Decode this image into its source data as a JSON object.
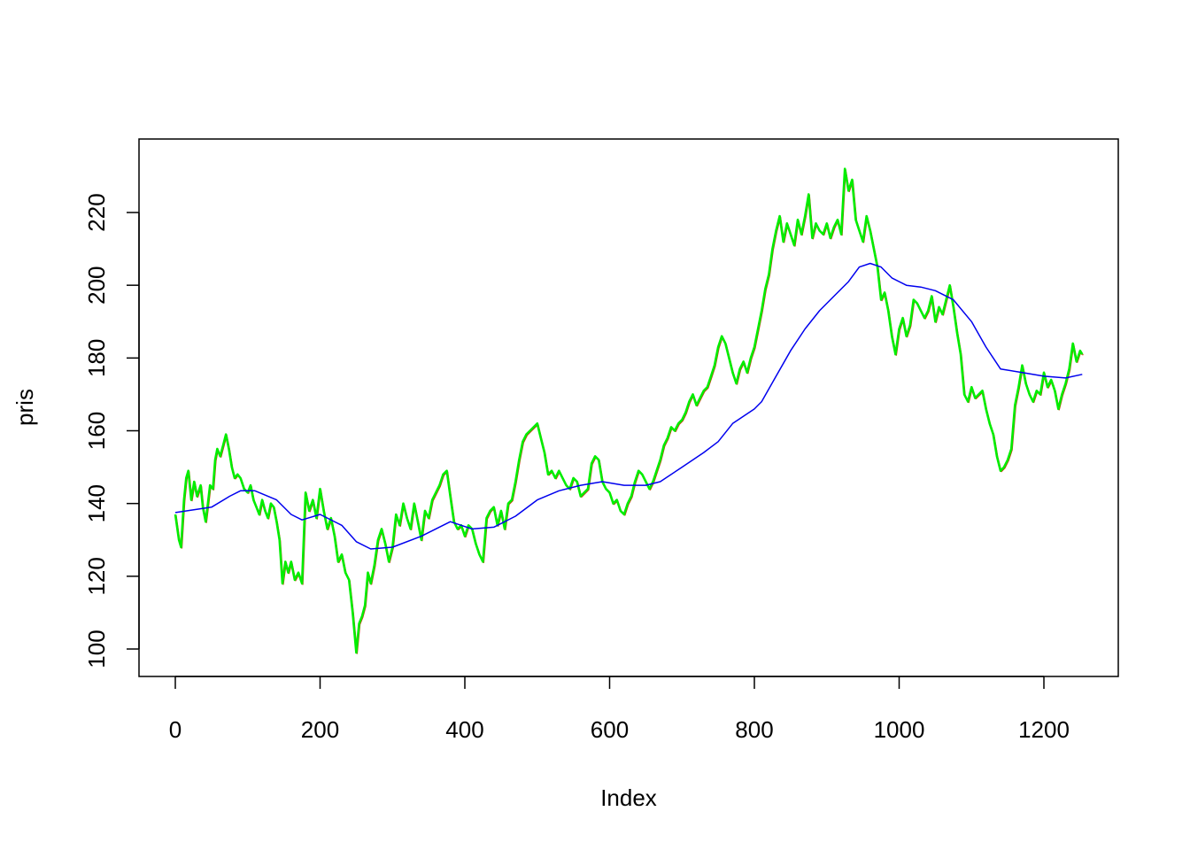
{
  "chart_data": {
    "type": "line",
    "title": "",
    "xlabel": "Index",
    "ylabel": "pris",
    "xlim": [
      -25,
      1280
    ],
    "ylim": [
      93,
      240
    ],
    "x_ticks": [
      0,
      200,
      400,
      600,
      800,
      1000,
      1200
    ],
    "y_ticks": [
      100,
      120,
      140,
      160,
      180,
      200,
      220
    ],
    "x_tick_labels": [
      "0",
      "200",
      "400",
      "600",
      "800",
      "1000",
      "1200"
    ],
    "y_tick_labels": [
      "100",
      "120",
      "140",
      "160",
      "180",
      "200",
      "220"
    ],
    "grid": false,
    "legend": "none",
    "colors": {
      "price_line": "#00ee00",
      "price_shadow": "#cc3300",
      "moving_average": "#0000ee",
      "frame": "#000000"
    },
    "series": [
      {
        "key": "pris",
        "color": "#00ee00",
        "points": [
          [
            0,
            137
          ],
          [
            5,
            130
          ],
          [
            8,
            128
          ],
          [
            12,
            141
          ],
          [
            15,
            147
          ],
          [
            18,
            149
          ],
          [
            22,
            141
          ],
          [
            26,
            146
          ],
          [
            30,
            142
          ],
          [
            35,
            145
          ],
          [
            38,
            139
          ],
          [
            42,
            135
          ],
          [
            45,
            140
          ],
          [
            48,
            145
          ],
          [
            52,
            144
          ],
          [
            55,
            152
          ],
          [
            58,
            155
          ],
          [
            62,
            153
          ],
          [
            66,
            156
          ],
          [
            70,
            159
          ],
          [
            74,
            155
          ],
          [
            78,
            150
          ],
          [
            82,
            147
          ],
          [
            86,
            148
          ],
          [
            90,
            147
          ],
          [
            95,
            144
          ],
          [
            100,
            143
          ],
          [
            104,
            145
          ],
          [
            108,
            141
          ],
          [
            112,
            139
          ],
          [
            116,
            137
          ],
          [
            120,
            141
          ],
          [
            124,
            138
          ],
          [
            128,
            136
          ],
          [
            132,
            140
          ],
          [
            136,
            139
          ],
          [
            140,
            135
          ],
          [
            144,
            130
          ],
          [
            148,
            118
          ],
          [
            152,
            124
          ],
          [
            156,
            121
          ],
          [
            160,
            124
          ],
          [
            165,
            119
          ],
          [
            170,
            121
          ],
          [
            175,
            118
          ],
          [
            180,
            143
          ],
          [
            185,
            138
          ],
          [
            190,
            141
          ],
          [
            195,
            136
          ],
          [
            200,
            144
          ],
          [
            205,
            138
          ],
          [
            210,
            133
          ],
          [
            215,
            136
          ],
          [
            220,
            131
          ],
          [
            225,
            124
          ],
          [
            230,
            126
          ],
          [
            235,
            121
          ],
          [
            240,
            119
          ],
          [
            245,
            110
          ],
          [
            250,
            99
          ],
          [
            254,
            107
          ],
          [
            258,
            109
          ],
          [
            262,
            112
          ],
          [
            266,
            121
          ],
          [
            270,
            118
          ],
          [
            275,
            123
          ],
          [
            280,
            130
          ],
          [
            285,
            133
          ],
          [
            290,
            129
          ],
          [
            295,
            124
          ],
          [
            300,
            128
          ],
          [
            305,
            137
          ],
          [
            310,
            134
          ],
          [
            315,
            140
          ],
          [
            320,
            136
          ],
          [
            325,
            133
          ],
          [
            330,
            140
          ],
          [
            335,
            135
          ],
          [
            340,
            130
          ],
          [
            345,
            138
          ],
          [
            350,
            136
          ],
          [
            355,
            141
          ],
          [
            360,
            143
          ],
          [
            365,
            145
          ],
          [
            370,
            148
          ],
          [
            375,
            149
          ],
          [
            380,
            142
          ],
          [
            385,
            135
          ],
          [
            390,
            133
          ],
          [
            395,
            134
          ],
          [
            400,
            131
          ],
          [
            405,
            134
          ],
          [
            410,
            133
          ],
          [
            415,
            129
          ],
          [
            420,
            126
          ],
          [
            425,
            124
          ],
          [
            430,
            136
          ],
          [
            435,
            138
          ],
          [
            440,
            139
          ],
          [
            445,
            134
          ],
          [
            450,
            138
          ],
          [
            455,
            133
          ],
          [
            460,
            140
          ],
          [
            465,
            141
          ],
          [
            470,
            146
          ],
          [
            475,
            152
          ],
          [
            480,
            157
          ],
          [
            485,
            159
          ],
          [
            490,
            160
          ],
          [
            495,
            161
          ],
          [
            500,
            162
          ],
          [
            505,
            158
          ],
          [
            510,
            154
          ],
          [
            515,
            148
          ],
          [
            520,
            149
          ],
          [
            525,
            147
          ],
          [
            530,
            149
          ],
          [
            535,
            147
          ],
          [
            540,
            145
          ],
          [
            545,
            144
          ],
          [
            550,
            147
          ],
          [
            555,
            146
          ],
          [
            560,
            142
          ],
          [
            565,
            143
          ],
          [
            570,
            144
          ],
          [
            575,
            151
          ],
          [
            580,
            153
          ],
          [
            585,
            152
          ],
          [
            590,
            146
          ],
          [
            595,
            144
          ],
          [
            600,
            143
          ],
          [
            605,
            140
          ],
          [
            610,
            141
          ],
          [
            615,
            138
          ],
          [
            620,
            137
          ],
          [
            625,
            140
          ],
          [
            630,
            142
          ],
          [
            635,
            146
          ],
          [
            640,
            149
          ],
          [
            645,
            148
          ],
          [
            650,
            146
          ],
          [
            655,
            144
          ],
          [
            660,
            146
          ],
          [
            665,
            149
          ],
          [
            670,
            152
          ],
          [
            675,
            156
          ],
          [
            680,
            158
          ],
          [
            685,
            161
          ],
          [
            690,
            160
          ],
          [
            695,
            162
          ],
          [
            700,
            163
          ],
          [
            705,
            165
          ],
          [
            710,
            168
          ],
          [
            715,
            170
          ],
          [
            720,
            167
          ],
          [
            725,
            169
          ],
          [
            730,
            171
          ],
          [
            735,
            172
          ],
          [
            740,
            175
          ],
          [
            745,
            178
          ],
          [
            750,
            183
          ],
          [
            755,
            186
          ],
          [
            760,
            184
          ],
          [
            765,
            180
          ],
          [
            770,
            176
          ],
          [
            775,
            173
          ],
          [
            780,
            177
          ],
          [
            785,
            179
          ],
          [
            790,
            176
          ],
          [
            795,
            180
          ],
          [
            800,
            183
          ],
          [
            805,
            188
          ],
          [
            810,
            193
          ],
          [
            815,
            199
          ],
          [
            820,
            203
          ],
          [
            825,
            210
          ],
          [
            830,
            215
          ],
          [
            835,
            219
          ],
          [
            840,
            212
          ],
          [
            845,
            217
          ],
          [
            850,
            214
          ],
          [
            855,
            211
          ],
          [
            860,
            218
          ],
          [
            865,
            214
          ],
          [
            870,
            219
          ],
          [
            875,
            225
          ],
          [
            880,
            213
          ],
          [
            885,
            217
          ],
          [
            890,
            215
          ],
          [
            895,
            214
          ],
          [
            900,
            217
          ],
          [
            905,
            213
          ],
          [
            910,
            216
          ],
          [
            915,
            218
          ],
          [
            920,
            214
          ],
          [
            925,
            232
          ],
          [
            930,
            226
          ],
          [
            935,
            229
          ],
          [
            940,
            218
          ],
          [
            945,
            215
          ],
          [
            950,
            212
          ],
          [
            955,
            219
          ],
          [
            960,
            215
          ],
          [
            965,
            210
          ],
          [
            970,
            205
          ],
          [
            975,
            196
          ],
          [
            980,
            198
          ],
          [
            985,
            193
          ],
          [
            990,
            186
          ],
          [
            995,
            181
          ],
          [
            1000,
            188
          ],
          [
            1005,
            191
          ],
          [
            1010,
            186
          ],
          [
            1015,
            189
          ],
          [
            1020,
            196
          ],
          [
            1025,
            195
          ],
          [
            1030,
            193
          ],
          [
            1035,
            191
          ],
          [
            1040,
            193
          ],
          [
            1045,
            197
          ],
          [
            1050,
            190
          ],
          [
            1055,
            194
          ],
          [
            1060,
            192
          ],
          [
            1065,
            196
          ],
          [
            1070,
            200
          ],
          [
            1075,
            194
          ],
          [
            1080,
            187
          ],
          [
            1085,
            181
          ],
          [
            1090,
            170
          ],
          [
            1095,
            168
          ],
          [
            1100,
            172
          ],
          [
            1105,
            169
          ],
          [
            1110,
            170
          ],
          [
            1115,
            171
          ],
          [
            1120,
            166
          ],
          [
            1125,
            162
          ],
          [
            1130,
            159
          ],
          [
            1135,
            153
          ],
          [
            1140,
            149
          ],
          [
            1145,
            150
          ],
          [
            1150,
            152
          ],
          [
            1155,
            155
          ],
          [
            1160,
            167
          ],
          [
            1165,
            172
          ],
          [
            1170,
            178
          ],
          [
            1175,
            173
          ],
          [
            1180,
            170
          ],
          [
            1185,
            168
          ],
          [
            1190,
            171
          ],
          [
            1195,
            170
          ],
          [
            1200,
            176
          ],
          [
            1205,
            172
          ],
          [
            1210,
            174
          ],
          [
            1215,
            171
          ],
          [
            1220,
            166
          ],
          [
            1225,
            170
          ],
          [
            1230,
            173
          ],
          [
            1235,
            177
          ],
          [
            1240,
            184
          ],
          [
            1245,
            179
          ],
          [
            1250,
            182
          ],
          [
            1253,
            181
          ]
        ]
      },
      {
        "key": "moving-average",
        "color": "#0000ee",
        "points": [
          [
            0,
            137.5
          ],
          [
            50,
            139
          ],
          [
            75,
            142
          ],
          [
            90,
            143.5
          ],
          [
            110,
            143.5
          ],
          [
            140,
            141
          ],
          [
            160,
            137
          ],
          [
            175,
            135.5
          ],
          [
            200,
            137
          ],
          [
            230,
            134
          ],
          [
            250,
            129.5
          ],
          [
            270,
            127.5
          ],
          [
            300,
            128
          ],
          [
            340,
            131
          ],
          [
            380,
            135
          ],
          [
            410,
            133
          ],
          [
            440,
            133.5
          ],
          [
            470,
            136.5
          ],
          [
            500,
            141
          ],
          [
            530,
            143.5
          ],
          [
            560,
            145
          ],
          [
            590,
            146
          ],
          [
            620,
            145
          ],
          [
            650,
            145
          ],
          [
            670,
            146
          ],
          [
            700,
            150
          ],
          [
            730,
            154
          ],
          [
            750,
            157
          ],
          [
            770,
            162
          ],
          [
            800,
            166
          ],
          [
            810,
            168
          ],
          [
            830,
            175
          ],
          [
            850,
            182
          ],
          [
            870,
            188
          ],
          [
            890,
            193
          ],
          [
            910,
            197
          ],
          [
            930,
            201
          ],
          [
            945,
            205
          ],
          [
            960,
            206
          ],
          [
            975,
            205
          ],
          [
            990,
            202
          ],
          [
            1010,
            200
          ],
          [
            1030,
            199.5
          ],
          [
            1050,
            198.5
          ],
          [
            1075,
            196
          ],
          [
            1100,
            190
          ],
          [
            1120,
            183
          ],
          [
            1140,
            177
          ],
          [
            1170,
            176
          ],
          [
            1200,
            175
          ],
          [
            1230,
            174.5
          ],
          [
            1253,
            175.5
          ]
        ]
      }
    ]
  }
}
